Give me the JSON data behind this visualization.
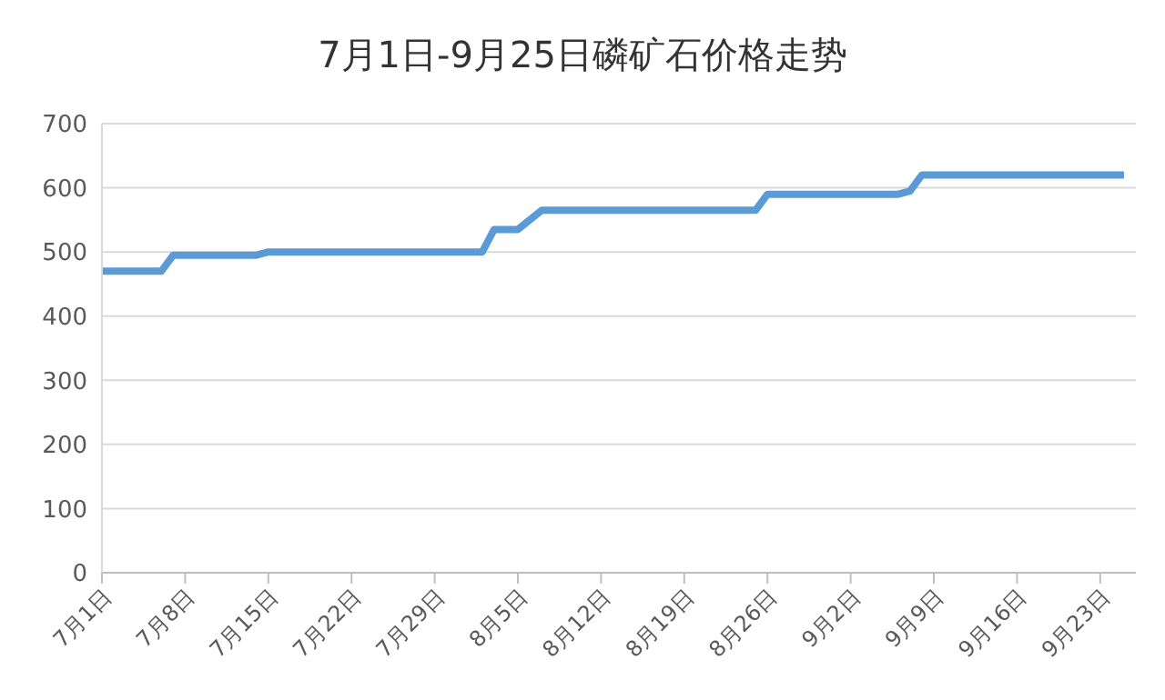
{
  "chart_data": {
    "type": "line",
    "title": "7月1日-9月25日磷矿石价格走势",
    "x": [
      "--07-01",
      "--07-06",
      "--07-07",
      "--07-14",
      "--07-15",
      "--08-02",
      "--08-03",
      "--08-05",
      "--08-06",
      "--08-07",
      "--08-25",
      "--08-26",
      "--09-06",
      "--09-07",
      "--09-08",
      "--09-25"
    ],
    "series": [
      {
        "color": "#5b9bd5",
        "values": [
          470,
          470,
          495,
          495,
          500,
          500,
          535,
          535,
          550,
          565,
          565,
          590,
          590,
          595,
          620,
          620
        ]
      }
    ],
    "xlim": [
      "--07-01",
      "--09-26"
    ],
    "xticks": [
      {
        "value": "--07-01",
        "label": "7月1日"
      },
      {
        "value": "--07-08",
        "label": "7月8日"
      },
      {
        "value": "--07-15",
        "label": "7月15日"
      },
      {
        "value": "--07-22",
        "label": "7月22日"
      },
      {
        "value": "--07-29",
        "label": "7月29日"
      },
      {
        "value": "--08-05",
        "label": "8月5日"
      },
      {
        "value": "--08-12",
        "label": "8月12日"
      },
      {
        "value": "--08-19",
        "label": "8月19日"
      },
      {
        "value": "--08-26",
        "label": "8月26日"
      },
      {
        "value": "--09-02",
        "label": "9月2日"
      },
      {
        "value": "--09-09",
        "label": "9月9日"
      },
      {
        "value": "--09-16",
        "label": "9月16日"
      },
      {
        "value": "--09-23",
        "label": "9月23日"
      }
    ],
    "ylim": [
      0,
      700
    ],
    "yticks": [
      0,
      100,
      200,
      300,
      400,
      500,
      600,
      700
    ],
    "grid": "y",
    "legend": false,
    "marker": "none",
    "line_style": "solid"
  }
}
